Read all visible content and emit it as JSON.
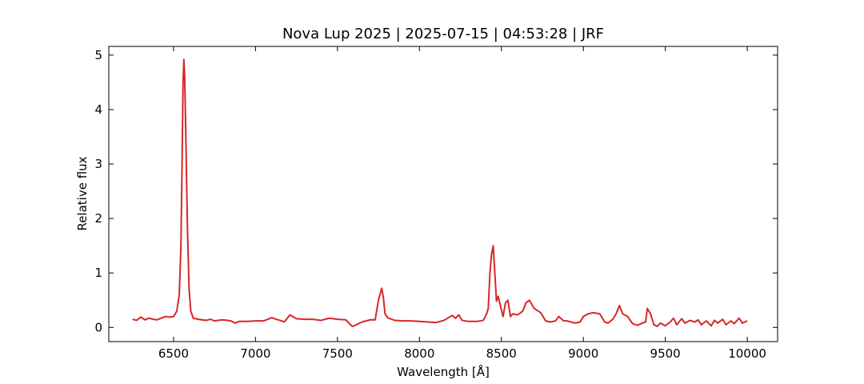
{
  "chart_data": {
    "type": "line",
    "title": "Nova Lup 2025 | 2025-07-15 | 04:53:28 | JRF",
    "xlabel": "Wavelength [Å]",
    "ylabel": "Relative flux",
    "color": "#d62728",
    "xlim": [
      6105,
      10185
    ],
    "ylim": [
      -0.26,
      5.16
    ],
    "xticks": [
      6500,
      7000,
      7500,
      8000,
      8500,
      9000,
      9500,
      10000
    ],
    "yticks": [
      0,
      1,
      2,
      3,
      4,
      5
    ],
    "x": [
      6250,
      6275,
      6300,
      6325,
      6350,
      6375,
      6400,
      6425,
      6450,
      6475,
      6500,
      6520,
      6535,
      6545,
      6552,
      6558,
      6563,
      6568,
      6575,
      6585,
      6595,
      6605,
      6620,
      6650,
      6700,
      6725,
      6750,
      6800,
      6850,
      6875,
      6900,
      6950,
      7000,
      7050,
      7100,
      7125,
      7150,
      7175,
      7210,
      7250,
      7300,
      7350,
      7400,
      7450,
      7500,
      7550,
      7590,
      7610,
      7650,
      7700,
      7730,
      7750,
      7770,
      7780,
      7790,
      7810,
      7850,
      7900,
      7950,
      8000,
      8050,
      8100,
      8150,
      8200,
      8220,
      8240,
      8260,
      8300,
      8350,
      8390,
      8410,
      8420,
      8430,
      8440,
      8450,
      8460,
      8470,
      8480,
      8490,
      8510,
      8525,
      8540,
      8555,
      8570,
      8600,
      8630,
      8650,
      8670,
      8700,
      8740,
      8770,
      8800,
      8830,
      8850,
      8880,
      8900,
      8950,
      8980,
      9000,
      9030,
      9060,
      9100,
      9130,
      9150,
      9180,
      9200,
      9220,
      9240,
      9270,
      9300,
      9330,
      9360,
      9380,
      9390,
      9410,
      9430,
      9450,
      9470,
      9500,
      9530,
      9550,
      9570,
      9600,
      9620,
      9650,
      9680,
      9700,
      9720,
      9750,
      9780,
      9800,
      9820,
      9850,
      9870,
      9900,
      9920,
      9950,
      9970,
      10000
    ],
    "values": [
      0.15,
      0.13,
      0.19,
      0.14,
      0.17,
      0.15,
      0.14,
      0.17,
      0.2,
      0.19,
      0.2,
      0.3,
      0.6,
      1.5,
      3.0,
      4.5,
      4.92,
      4.6,
      3.5,
      1.8,
      0.7,
      0.3,
      0.17,
      0.15,
      0.13,
      0.15,
      0.12,
      0.14,
      0.12,
      0.08,
      0.11,
      0.11,
      0.12,
      0.12,
      0.18,
      0.15,
      0.13,
      0.1,
      0.23,
      0.16,
      0.15,
      0.15,
      0.13,
      0.17,
      0.15,
      0.14,
      0.02,
      0.04,
      0.1,
      0.14,
      0.14,
      0.5,
      0.72,
      0.55,
      0.25,
      0.17,
      0.13,
      0.12,
      0.12,
      0.11,
      0.1,
      0.09,
      0.13,
      0.22,
      0.17,
      0.23,
      0.13,
      0.11,
      0.11,
      0.13,
      0.25,
      0.35,
      1.0,
      1.35,
      1.5,
      1.0,
      0.48,
      0.57,
      0.45,
      0.2,
      0.45,
      0.5,
      0.2,
      0.25,
      0.23,
      0.3,
      0.45,
      0.5,
      0.35,
      0.27,
      0.12,
      0.1,
      0.12,
      0.2,
      0.12,
      0.12,
      0.08,
      0.1,
      0.2,
      0.25,
      0.27,
      0.25,
      0.1,
      0.08,
      0.15,
      0.25,
      0.4,
      0.25,
      0.2,
      0.07,
      0.04,
      0.08,
      0.1,
      0.35,
      0.25,
      0.05,
      0.02,
      0.08,
      0.03,
      0.1,
      0.17,
      0.05,
      0.16,
      0.08,
      0.13,
      0.1,
      0.14,
      0.05,
      0.12,
      0.03,
      0.13,
      0.08,
      0.15,
      0.05,
      0.12,
      0.07,
      0.17,
      0.08,
      0.12
    ]
  }
}
